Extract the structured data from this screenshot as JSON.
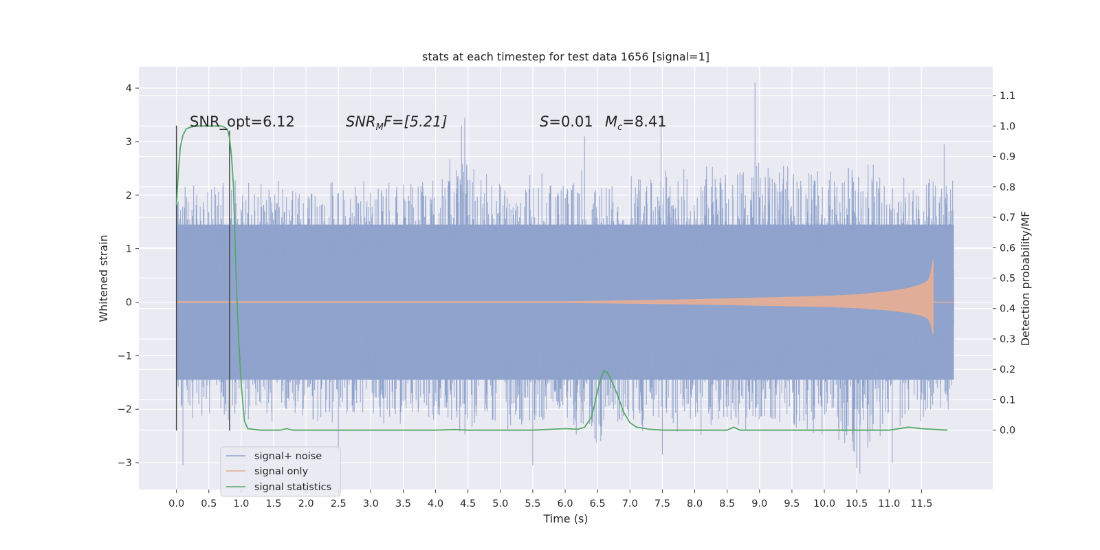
{
  "chart_data": {
    "type": "line",
    "title": "stats at each timestep for test data 1656 [signal=1]",
    "xlabel": "Time (s)",
    "ylabel": "Whitened strain",
    "ylabel_right": "Detection probability/MF",
    "xlim": [
      -0.58,
      12.6
    ],
    "ylim": [
      -3.5,
      4.4
    ],
    "ylim_right": [
      -0.195,
      1.195
    ],
    "x_ticks": [
      "0.0",
      "0.5",
      "1.0",
      "1.5",
      "2.0",
      "2.5",
      "3.0",
      "3.5",
      "4.0",
      "4.5",
      "5.0",
      "5.5",
      "6.0",
      "6.5",
      "7.0",
      "7.5",
      "8.0",
      "8.5",
      "9.0",
      "9.5",
      "10.0",
      "10.5",
      "11.0",
      "11.5"
    ],
    "y_ticks": [
      "−3",
      "−2",
      "−1",
      "0",
      "1",
      "2",
      "3",
      "4"
    ],
    "y_ticks_right": [
      "0.0",
      "0.1",
      "0.2",
      "0.3",
      "0.4",
      "0.5",
      "0.6",
      "0.7",
      "0.8",
      "0.9",
      "1.0",
      "1.1"
    ],
    "grid": true,
    "legend_position": "lower-left",
    "annotations": {
      "snr_opt": "SNR_opt=6.12",
      "snr_mf_main": "SNR",
      "snr_mf_sub": "M",
      "snr_mf_rest": "F=[5.21]",
      "s_sym": "S",
      "s_val": "=0.01",
      "mc_sym": "M",
      "mc_sub": "c",
      "mc_val": "=8.41"
    },
    "series": [
      {
        "name": "signal+ noise",
        "color": "#8fa3cc",
        "t_range": [
          0.0,
          12.0
        ],
        "envelope_upper": [
          [
            0.0,
            2.0
          ],
          [
            0.5,
            2.2
          ],
          [
            1.0,
            2.1
          ],
          [
            1.5,
            2.2
          ],
          [
            2.0,
            2.0
          ],
          [
            2.5,
            2.2
          ],
          [
            3.0,
            2.1
          ],
          [
            3.5,
            2.2
          ],
          [
            4.0,
            2.3
          ],
          [
            4.5,
            2.6
          ],
          [
            5.0,
            2.0
          ],
          [
            5.5,
            2.2
          ],
          [
            6.0,
            2.2
          ],
          [
            6.5,
            2.3
          ],
          [
            7.0,
            2.4
          ],
          [
            7.5,
            2.3
          ],
          [
            8.0,
            2.3
          ],
          [
            8.5,
            2.4
          ],
          [
            9.0,
            2.4
          ],
          [
            9.5,
            2.3
          ],
          [
            10.0,
            2.3
          ],
          [
            10.5,
            2.4
          ],
          [
            11.0,
            2.3
          ],
          [
            11.5,
            2.4
          ],
          [
            12.0,
            2.1
          ]
        ],
        "envelope_lower": [
          [
            0.0,
            -2.0
          ],
          [
            0.5,
            -2.1
          ],
          [
            1.0,
            -2.0
          ],
          [
            1.5,
            -2.1
          ],
          [
            2.0,
            -2.0
          ],
          [
            2.5,
            -2.1
          ],
          [
            3.0,
            -2.1
          ],
          [
            3.5,
            -2.2
          ],
          [
            4.0,
            -2.2
          ],
          [
            4.5,
            -2.3
          ],
          [
            5.0,
            -2.2
          ],
          [
            5.5,
            -2.3
          ],
          [
            6.0,
            -2.2
          ],
          [
            6.5,
            -2.4
          ],
          [
            7.0,
            -2.2
          ],
          [
            7.5,
            -2.3
          ],
          [
            8.0,
            -2.3
          ],
          [
            8.5,
            -2.2
          ],
          [
            9.0,
            -2.2
          ],
          [
            9.5,
            -2.3
          ],
          [
            10.0,
            -2.3
          ],
          [
            10.5,
            -2.6
          ],
          [
            11.0,
            -2.3
          ],
          [
            11.5,
            -2.2
          ],
          [
            12.0,
            -1.8
          ]
        ],
        "peaks": [
          [
            0.1,
            -3.05
          ],
          [
            0.8,
            -2.2
          ],
          [
            2.5,
            -2.8
          ],
          [
            4.4,
            3.3
          ],
          [
            4.45,
            3.45
          ],
          [
            5.5,
            -3.05
          ],
          [
            6.3,
            3.1
          ],
          [
            6.55,
            -2.6
          ],
          [
            7.48,
            3.35
          ],
          [
            7.5,
            -2.85
          ],
          [
            8.93,
            4.1
          ],
          [
            10.5,
            -3.1
          ],
          [
            10.55,
            -3.2
          ],
          [
            11.05,
            -3.0
          ],
          [
            11.85,
            2.95
          ]
        ]
      },
      {
        "name": "signal only",
        "color": "#e5ae96",
        "t_range": [
          0.0,
          12.0
        ],
        "chirp_end": 11.68,
        "amplitude": [
          [
            0.0,
            0.01
          ],
          [
            6.0,
            0.01
          ],
          [
            8.0,
            0.05
          ],
          [
            9.0,
            0.08
          ],
          [
            10.0,
            0.11
          ],
          [
            10.5,
            0.14
          ],
          [
            11.0,
            0.2
          ],
          [
            11.3,
            0.26
          ],
          [
            11.5,
            0.33
          ],
          [
            11.6,
            0.4
          ],
          [
            11.65,
            0.55
          ],
          [
            11.68,
            0.8
          ]
        ]
      },
      {
        "name": "signal statistics",
        "color": "#55a868",
        "x": [
          0.0,
          0.03,
          0.06,
          0.1,
          0.15,
          0.2,
          0.3,
          0.4,
          0.5,
          0.6,
          0.65,
          0.7,
          0.75,
          0.78,
          0.8,
          0.82,
          0.85,
          0.88,
          0.9,
          0.93,
          0.96,
          1.0,
          1.05,
          1.1,
          1.3,
          1.6,
          1.7,
          1.8,
          2.0,
          3.0,
          4.0,
          4.3,
          4.5,
          5.0,
          5.5,
          5.8,
          6.0,
          6.2,
          6.3,
          6.4,
          6.45,
          6.5,
          6.55,
          6.6,
          6.65,
          6.7,
          6.8,
          6.9,
          7.0,
          7.1,
          7.3,
          7.5,
          8.0,
          8.5,
          8.6,
          8.7,
          9.0,
          10.0,
          11.0,
          11.3,
          11.5,
          11.9
        ],
        "y": [
          0.74,
          0.85,
          0.93,
          0.97,
          0.99,
          0.995,
          1.0,
          1.0,
          1.0,
          1.0,
          1.0,
          1.0,
          0.995,
          0.99,
          0.98,
          0.96,
          0.9,
          0.8,
          0.65,
          0.45,
          0.3,
          0.15,
          0.03,
          0.005,
          0.0,
          0.0,
          0.005,
          0.0,
          0.0,
          0.0,
          0.0,
          0.002,
          0.0,
          0.0,
          0.0,
          0.003,
          0.005,
          0.003,
          0.01,
          0.04,
          0.08,
          0.13,
          0.17,
          0.195,
          0.19,
          0.17,
          0.12,
          0.06,
          0.025,
          0.01,
          0.003,
          0.0,
          0.0,
          0.0,
          0.01,
          0.0,
          0.0,
          0.0,
          0.0,
          0.01,
          0.005,
          0.0
        ]
      }
    ],
    "vertical_markers": [
      {
        "x": 0.0,
        "y_range": [
          -2.4,
          3.3
        ]
      },
      {
        "x": 0.82,
        "y_range": [
          -2.4,
          3.2
        ]
      }
    ]
  }
}
